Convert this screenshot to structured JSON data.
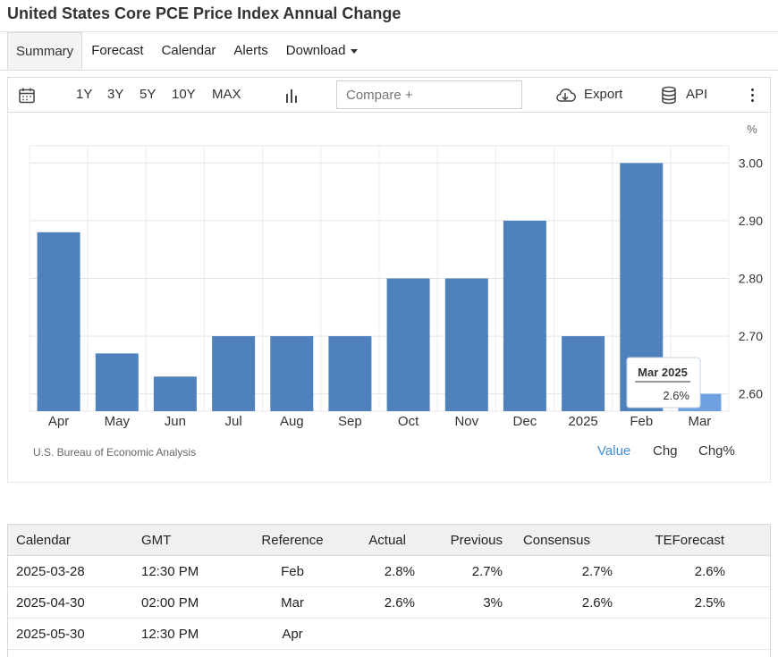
{
  "page_title": "United States Core PCE Price Index Annual Change",
  "tabs": [
    {
      "label": "Summary",
      "active": true
    },
    {
      "label": "Forecast"
    },
    {
      "label": "Calendar"
    },
    {
      "label": "Alerts"
    },
    {
      "label": "Download"
    }
  ],
  "toolbar": {
    "ranges": [
      "1Y",
      "3Y",
      "5Y",
      "10Y",
      "MAX"
    ],
    "compare_placeholder": "Compare +",
    "export_label": "Export",
    "api_label": "API",
    "icons": [
      "calendar-icon",
      "bar-chart-icon",
      "cloud-download-icon",
      "database-icon",
      "more-vert-icon"
    ]
  },
  "chart_data": {
    "type": "bar",
    "unit": "%",
    "categories": [
      "Apr",
      "May",
      "Jun",
      "Jul",
      "Aug",
      "Sep",
      "Oct",
      "Nov",
      "Dec",
      "2025",
      "Feb",
      "Mar"
    ],
    "values": [
      2.88,
      2.67,
      2.63,
      2.7,
      2.7,
      2.7,
      2.8,
      2.8,
      2.9,
      2.7,
      3.0,
      2.6
    ],
    "y_ticks": [
      "3.00",
      "2.90",
      "2.80",
      "2.70",
      "2.60"
    ],
    "ylim": [
      2.57,
      3.03
    ],
    "grid": true,
    "bar_color": "#4f81bd",
    "highlight_color": "#6fa0e0",
    "tooltip": {
      "title": "Mar 2025",
      "value": "2.6%"
    }
  },
  "chart_footer": {
    "source": "U.S. Bureau of Economic Analysis",
    "value_tabs": [
      "Value",
      "Chg",
      "Chg%"
    ],
    "accent_color": "#3b8fd9"
  },
  "calendar_table": {
    "headers": [
      "Calendar",
      "GMT",
      "Reference",
      "Actual",
      "Previous",
      "Consensus",
      "TEForecast"
    ],
    "rows": [
      [
        "2025-03-28",
        "12:30 PM",
        "Feb",
        "2.8%",
        "2.7%",
        "2.7%",
        "2.6%"
      ],
      [
        "2025-04-30",
        "02:00 PM",
        "Mar",
        "2.6%",
        "3%",
        "2.6%",
        "2.5%"
      ],
      [
        "2025-05-30",
        "12:30 PM",
        "Apr",
        "",
        "",
        "",
        ""
      ]
    ]
  }
}
